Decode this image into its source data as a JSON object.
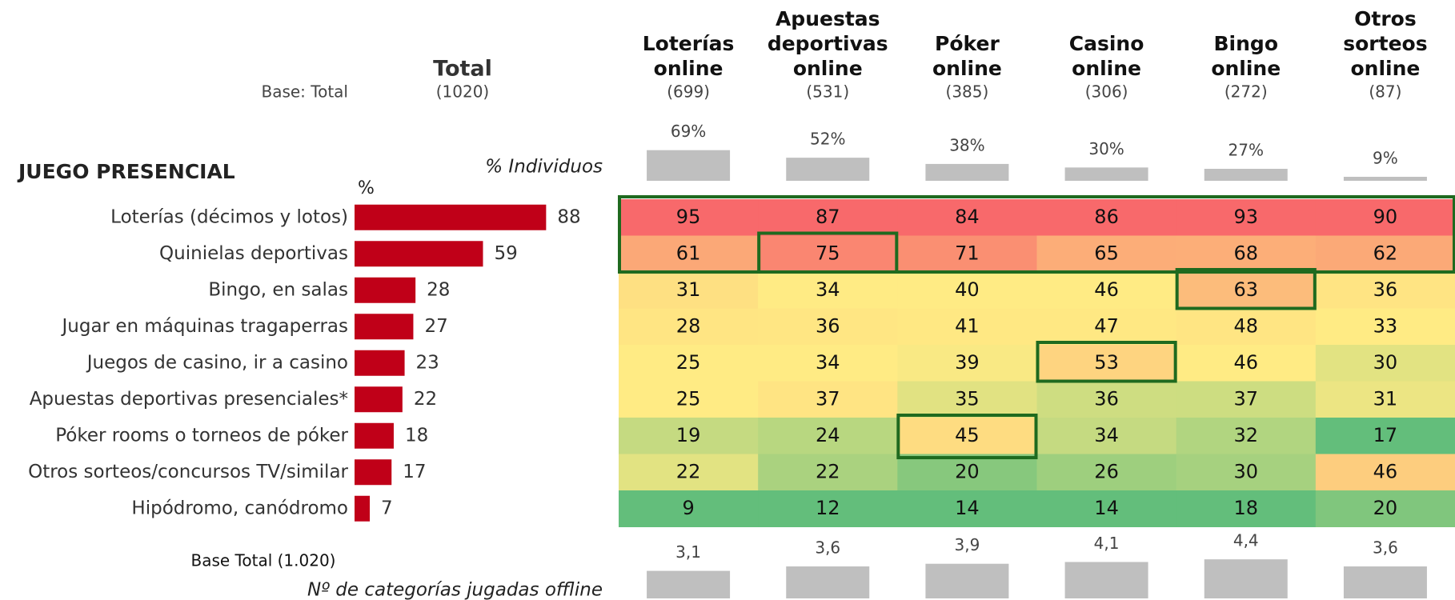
{
  "total": {
    "title": "Total",
    "base_label": "Base: Total",
    "base": "(1020)"
  },
  "section_title": "JUEGO PRESENCIAL",
  "percent_label": "%",
  "individuos_label": "% Individuos",
  "base_total": "Base Total (1.020)",
  "avg_caption": "Nº de categorías jugadas offline",
  "columns": [
    {
      "name": [
        "Loterías",
        "online"
      ],
      "base": "(699)",
      "pct": 69,
      "pct_label": "69%",
      "avg": 3.1,
      "avg_label": "3,1"
    },
    {
      "name": [
        "Apuestas",
        "deportivas",
        "online"
      ],
      "base": "(531)",
      "pct": 52,
      "pct_label": "52%",
      "avg": 3.6,
      "avg_label": "3,6"
    },
    {
      "name": [
        "Póker",
        "online"
      ],
      "base": "(385)",
      "pct": 38,
      "pct_label": "38%",
      "avg": 3.9,
      "avg_label": "3,9"
    },
    {
      "name": [
        "Casino",
        "online"
      ],
      "base": "(306)",
      "pct": 30,
      "pct_label": "30%",
      "avg": 4.1,
      "avg_label": "4,1"
    },
    {
      "name": [
        "Bingo",
        "online"
      ],
      "base": "(272)",
      "pct": 27,
      "pct_label": "27%",
      "avg": 4.4,
      "avg_label": "4,4"
    },
    {
      "name": [
        "Otros",
        "sorteos",
        "online"
      ],
      "base": "(87)",
      "pct": 9,
      "pct_label": "9%",
      "avg": 3.6,
      "avg_label": "3,6"
    }
  ],
  "rows": [
    {
      "label": "Loterías (décimos y lotos)",
      "total": 88,
      "values": [
        95,
        87,
        84,
        86,
        93,
        90
      ]
    },
    {
      "label": "Quinielas deportivas",
      "total": 59,
      "values": [
        61,
        75,
        71,
        65,
        68,
        62
      ]
    },
    {
      "label": "Bingo, en salas",
      "total": 28,
      "values": [
        31,
        34,
        40,
        46,
        63,
        36
      ]
    },
    {
      "label": "Jugar en máquinas tragaperras",
      "total": 27,
      "values": [
        28,
        36,
        41,
        47,
        48,
        33
      ]
    },
    {
      "label": "Juegos de casino, ir a casino",
      "total": 23,
      "values": [
        25,
        34,
        39,
        53,
        46,
        30
      ]
    },
    {
      "label": "Apuestas deportivas presenciales*",
      "total": 22,
      "values": [
        25,
        37,
        35,
        36,
        37,
        31
      ]
    },
    {
      "label": "Póker rooms o torneos de póker",
      "total": 18,
      "values": [
        19,
        24,
        45,
        34,
        32,
        17
      ]
    },
    {
      "label": "Otros sorteos/concursos TV/similar",
      "total": 17,
      "values": [
        22,
        22,
        20,
        26,
        30,
        46
      ]
    },
    {
      "label": "Hipódromo, canódromo",
      "total": 7,
      "values": [
        9,
        12,
        14,
        14,
        18,
        20
      ]
    }
  ]
}
